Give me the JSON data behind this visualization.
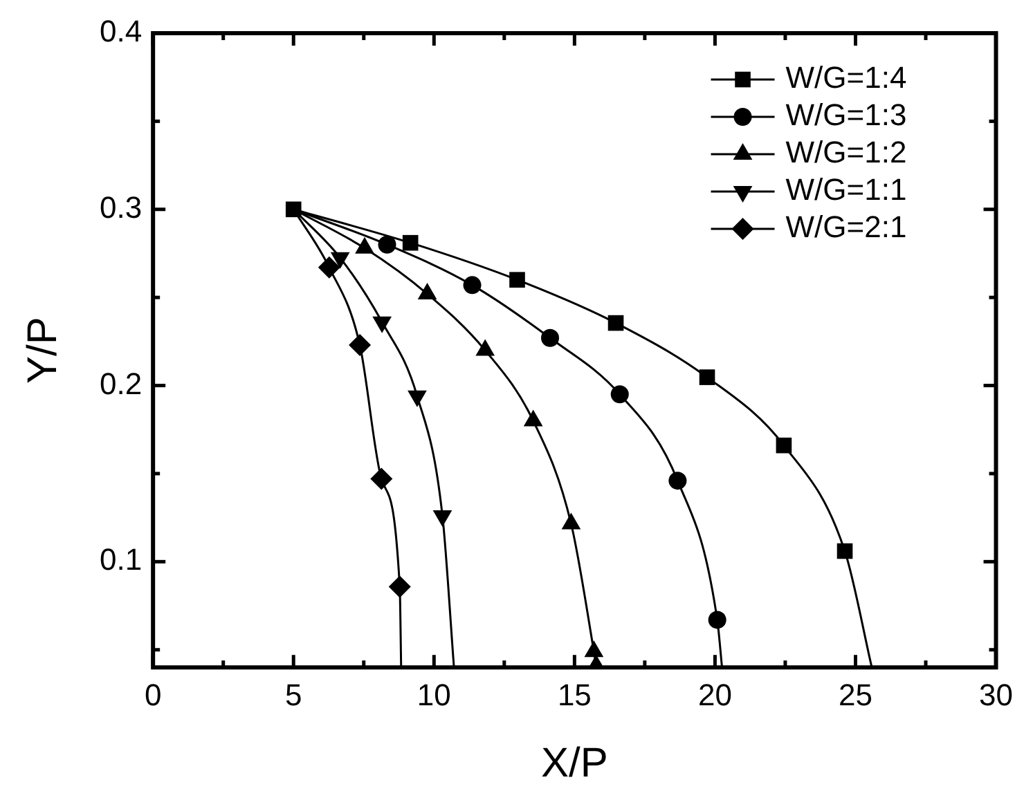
{
  "chart_data": {
    "type": "line",
    "xlabel": "X/P",
    "ylabel": "Y/P",
    "xlim": [
      0,
      30
    ],
    "xticks": [
      0,
      5,
      10,
      15,
      20,
      25,
      30
    ],
    "ylim": [
      0.04,
      0.4
    ],
    "yticks": [
      0.1,
      0.2,
      0.3,
      0.4
    ],
    "grid": false,
    "legend": "top right",
    "line_style": "solid",
    "series": [
      {
        "name": "W/G=1:4",
        "color": "#000000",
        "marker": "square",
        "x": [
          5,
          9.16,
          12.96,
          16.47,
          19.72,
          22.45,
          24.62,
          25.58
        ],
        "values": [
          0.3,
          0.281,
          0.26,
          0.2355,
          0.2047,
          0.166,
          0.106,
          0.04
        ]
      },
      {
        "name": "W/G=1:3",
        "color": "#000000",
        "marker": "circle",
        "x": [
          5,
          8.33,
          11.36,
          14.13,
          16.61,
          18.67,
          20.08,
          20.25
        ],
        "values": [
          0.3,
          0.28,
          0.257,
          0.227,
          0.195,
          0.146,
          0.067,
          0.04
        ]
      },
      {
        "name": "W/G=1:2",
        "color": "#000000",
        "marker": "triangle",
        "x": [
          5,
          7.53,
          9.76,
          11.82,
          13.53,
          14.88,
          15.69,
          15.77
        ],
        "values": [
          0.3,
          0.278,
          0.252,
          0.22,
          0.18,
          0.1215,
          0.049,
          0.041
        ]
      },
      {
        "name": "W/G=1:1",
        "color": "#000000",
        "marker": "triangle-down",
        "x": [
          5,
          6.66,
          8.15,
          9.4,
          10.3,
          10.71
        ],
        "values": [
          0.3,
          0.2725,
          0.236,
          0.194,
          0.126,
          0.04
        ]
      },
      {
        "name": "W/G=2:1",
        "color": "#000000",
        "marker": "diamond",
        "x": [
          5,
          6.27,
          7.36,
          8.13,
          8.78,
          8.83
        ],
        "values": [
          0.3,
          0.267,
          0.223,
          0.147,
          0.0858,
          0.04
        ]
      }
    ]
  }
}
